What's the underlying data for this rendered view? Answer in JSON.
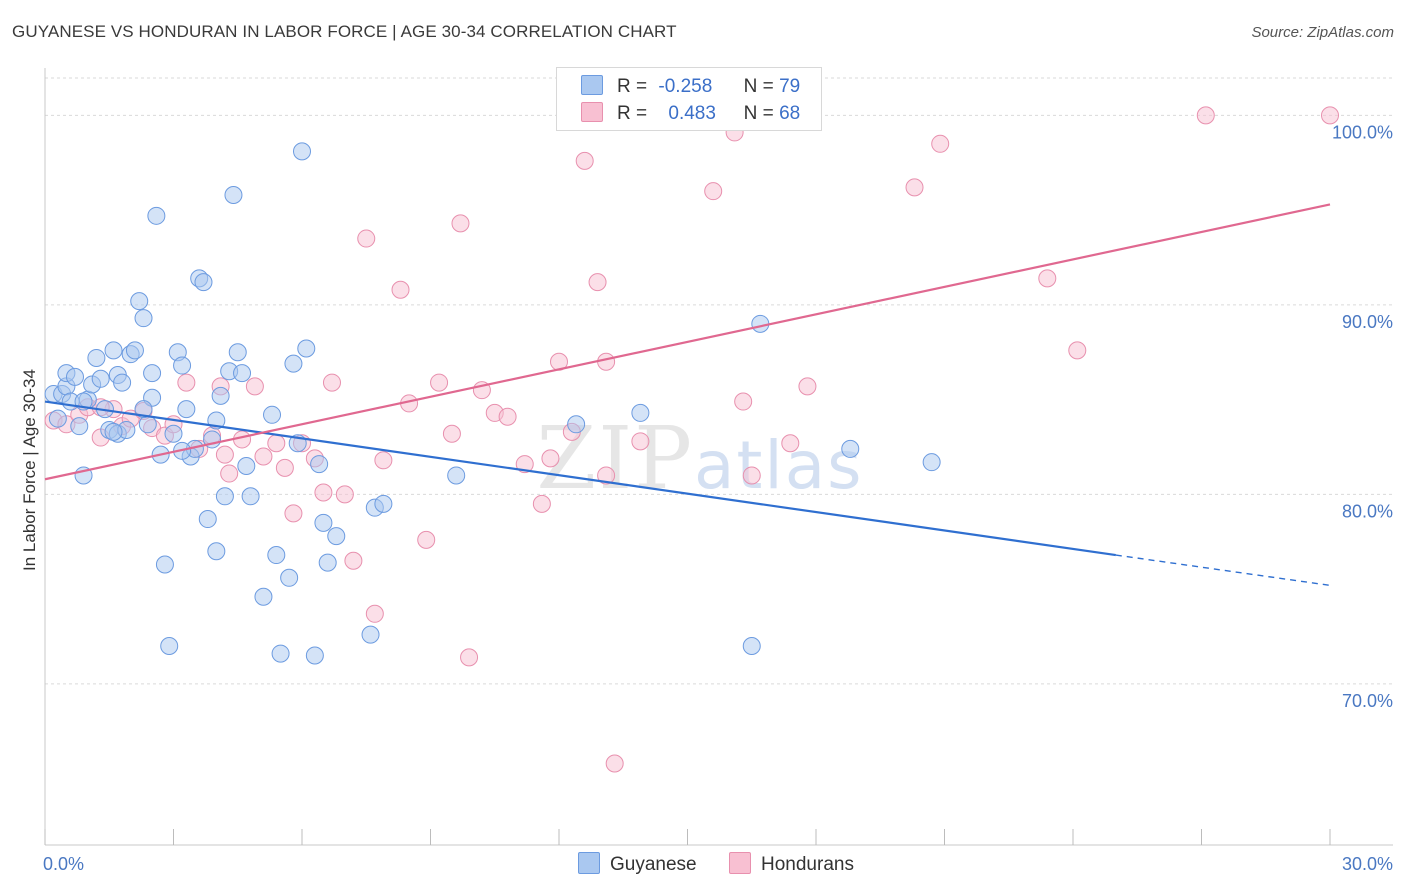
{
  "header": {
    "title": "GUYANESE VS HONDURAN IN LABOR FORCE | AGE 30-34 CORRELATION CHART",
    "source": "Source: ZipAtlas.com"
  },
  "legend": {
    "rows": [
      {
        "r_label": "R =",
        "r_value": "-0.258",
        "n_label": "N =",
        "n_value": "79"
      },
      {
        "r_label": "R =",
        "r_value": "0.483",
        "n_label": "N =",
        "n_value": "68"
      }
    ],
    "bottom": [
      "Guyanese",
      "Hondurans"
    ]
  },
  "colors": {
    "guyanese_fill": "#aac8f0",
    "guyanese_stroke": "#6c9be0",
    "guyanese_line": "#2f6fd0",
    "honduran_fill": "#f8c0d2",
    "honduran_stroke": "#e890ae",
    "honduran_line": "#e06890",
    "tick_text": "#4a78c2"
  },
  "chart_data": {
    "type": "scatter",
    "ylabel": "In Labor Force | Age 30-34",
    "xlim": [
      0,
      30
    ],
    "ylim": [
      61.5,
      102.5
    ],
    "x_tick_labels": [
      "0.0%",
      "30.0%"
    ],
    "y_ticks": [
      70,
      80,
      90,
      100
    ],
    "y_tick_labels": [
      "70.0%",
      "80.0%",
      "90.0%",
      "100.0%"
    ],
    "grid": true,
    "watermark": "ZIPatlas",
    "series": [
      {
        "name": "Guyanese",
        "trend": {
          "x": [
            0.0,
            25.0
          ],
          "y": [
            84.9,
            76.8
          ],
          "dashed_to": [
            30.0,
            75.2
          ]
        },
        "points": [
          [
            0.2,
            85.3
          ],
          [
            0.3,
            84.0
          ],
          [
            0.4,
            85.3
          ],
          [
            0.5,
            85.7
          ],
          [
            0.5,
            86.4
          ],
          [
            0.6,
            84.9
          ],
          [
            0.7,
            86.2
          ],
          [
            0.8,
            83.6
          ],
          [
            0.9,
            81.0
          ],
          [
            1.0,
            85.0
          ],
          [
            1.1,
            85.8
          ],
          [
            1.2,
            87.2
          ],
          [
            1.3,
            86.1
          ],
          [
            1.4,
            84.5
          ],
          [
            1.5,
            83.4
          ],
          [
            1.6,
            87.6
          ],
          [
            1.7,
            86.3
          ],
          [
            1.7,
            83.2
          ],
          [
            1.8,
            85.9
          ],
          [
            1.9,
            83.4
          ],
          [
            2.0,
            87.4
          ],
          [
            2.1,
            87.6
          ],
          [
            2.2,
            90.2
          ],
          [
            2.3,
            89.3
          ],
          [
            2.4,
            83.7
          ],
          [
            2.5,
            86.4
          ],
          [
            2.5,
            85.1
          ],
          [
            2.6,
            94.7
          ],
          [
            2.7,
            82.1
          ],
          [
            2.8,
            76.3
          ],
          [
            2.9,
            72.0
          ],
          [
            3.0,
            83.2
          ],
          [
            3.1,
            87.5
          ],
          [
            3.2,
            86.8
          ],
          [
            3.3,
            84.5
          ],
          [
            3.4,
            82.0
          ],
          [
            3.5,
            82.4
          ],
          [
            3.6,
            91.4
          ],
          [
            3.7,
            91.2
          ],
          [
            3.8,
            78.7
          ],
          [
            3.9,
            82.9
          ],
          [
            4.0,
            77.0
          ],
          [
            4.1,
            85.2
          ],
          [
            4.2,
            79.9
          ],
          [
            4.3,
            86.5
          ],
          [
            4.4,
            95.8
          ],
          [
            4.5,
            87.5
          ],
          [
            4.6,
            86.4
          ],
          [
            4.7,
            81.5
          ],
          [
            4.8,
            79.9
          ],
          [
            5.1,
            74.6
          ],
          [
            5.3,
            84.2
          ],
          [
            5.4,
            76.8
          ],
          [
            5.5,
            71.6
          ],
          [
            5.7,
            75.6
          ],
          [
            5.8,
            86.9
          ],
          [
            5.9,
            82.7
          ],
          [
            6.0,
            98.1
          ],
          [
            6.1,
            87.7
          ],
          [
            6.3,
            71.5
          ],
          [
            6.4,
            81.6
          ],
          [
            6.5,
            78.5
          ],
          [
            6.6,
            76.4
          ],
          [
            6.8,
            77.8
          ],
          [
            7.6,
            72.6
          ],
          [
            7.7,
            79.3
          ],
          [
            7.9,
            79.5
          ],
          [
            9.6,
            81.0
          ],
          [
            12.4,
            83.7
          ],
          [
            13.9,
            84.3
          ],
          [
            16.5,
            72.0
          ],
          [
            16.7,
            89.0
          ],
          [
            18.8,
            82.4
          ],
          [
            20.7,
            81.7
          ],
          [
            1.6,
            83.3
          ],
          [
            2.3,
            84.5
          ],
          [
            0.9,
            84.9
          ],
          [
            4.0,
            83.9
          ],
          [
            3.2,
            82.3
          ]
        ]
      },
      {
        "name": "Hondurans",
        "trend": {
          "x": [
            0.0,
            30.0
          ],
          "y": [
            80.8,
            95.3
          ]
        },
        "points": [
          [
            0.2,
            83.9
          ],
          [
            0.5,
            83.7
          ],
          [
            0.8,
            84.2
          ],
          [
            1.0,
            84.6
          ],
          [
            1.3,
            83.0
          ],
          [
            1.6,
            84.5
          ],
          [
            1.8,
            83.6
          ],
          [
            2.0,
            84.0
          ],
          [
            2.3,
            84.4
          ],
          [
            2.5,
            83.5
          ],
          [
            2.8,
            83.1
          ],
          [
            3.0,
            83.7
          ],
          [
            3.3,
            85.9
          ],
          [
            3.6,
            82.4
          ],
          [
            3.9,
            83.1
          ],
          [
            4.1,
            85.7
          ],
          [
            4.3,
            81.1
          ],
          [
            4.6,
            82.9
          ],
          [
            4.9,
            85.7
          ],
          [
            5.1,
            82.0
          ],
          [
            5.4,
            82.7
          ],
          [
            5.6,
            81.4
          ],
          [
            5.8,
            79.0
          ],
          [
            6.0,
            82.7
          ],
          [
            6.3,
            81.9
          ],
          [
            6.5,
            80.1
          ],
          [
            6.7,
            85.9
          ],
          [
            7.0,
            80.0
          ],
          [
            7.2,
            76.5
          ],
          [
            7.5,
            93.5
          ],
          [
            7.7,
            73.7
          ],
          [
            7.9,
            81.8
          ],
          [
            8.3,
            90.8
          ],
          [
            8.5,
            84.8
          ],
          [
            8.9,
            77.6
          ],
          [
            9.2,
            85.9
          ],
          [
            9.5,
            83.2
          ],
          [
            9.7,
            94.3
          ],
          [
            9.9,
            71.4
          ],
          [
            10.2,
            85.5
          ],
          [
            10.5,
            84.3
          ],
          [
            10.8,
            84.1
          ],
          [
            11.2,
            81.6
          ],
          [
            11.6,
            79.5
          ],
          [
            11.8,
            81.9
          ],
          [
            12.0,
            87.0
          ],
          [
            12.3,
            83.3
          ],
          [
            12.6,
            97.6
          ],
          [
            12.9,
            91.2
          ],
          [
            13.1,
            87.0
          ],
          [
            13.1,
            81.0
          ],
          [
            13.3,
            65.8
          ],
          [
            13.9,
            82.8
          ],
          [
            14.6,
            100.0
          ],
          [
            15.6,
            96.0
          ],
          [
            16.1,
            99.1
          ],
          [
            16.3,
            84.9
          ],
          [
            16.5,
            81.0
          ],
          [
            17.4,
            82.7
          ],
          [
            17.8,
            85.7
          ],
          [
            20.3,
            96.2
          ],
          [
            20.9,
            98.5
          ],
          [
            23.4,
            91.4
          ],
          [
            24.1,
            87.6
          ],
          [
            27.1,
            100.0
          ],
          [
            30.0,
            100.0
          ],
          [
            4.2,
            82.1
          ],
          [
            1.3,
            84.6
          ]
        ]
      }
    ]
  }
}
